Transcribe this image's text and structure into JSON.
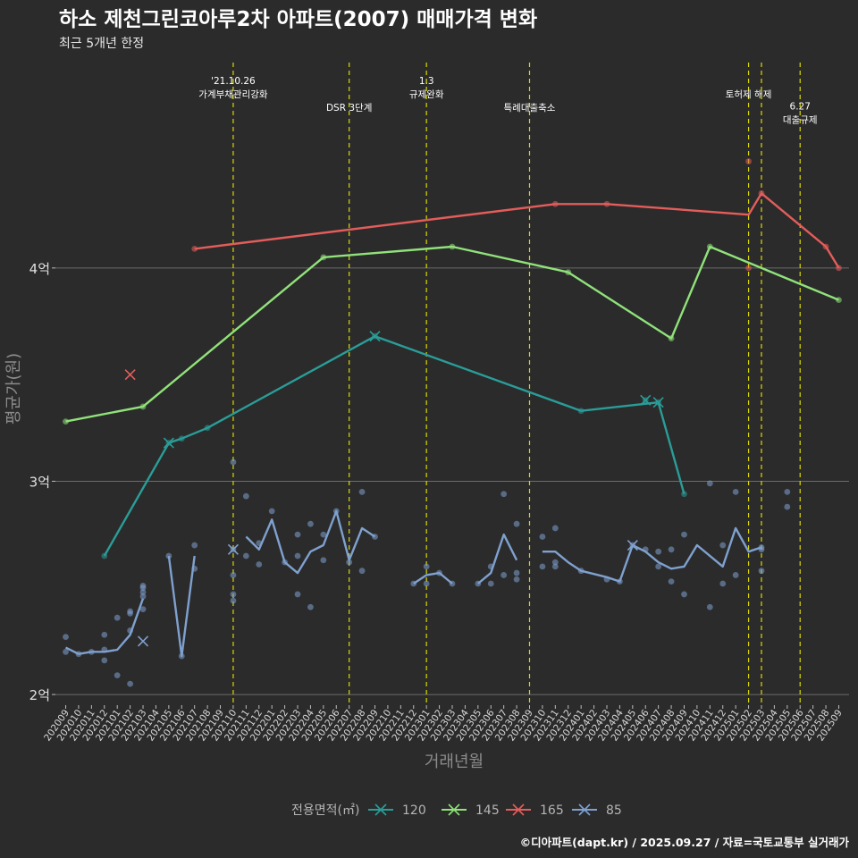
{
  "chart_data": {
    "type": "line",
    "title": "하소 제천그린코아루2차 아파트(2007) 매매가격 변화",
    "subtitle": "최근 5개년 한정",
    "xlabel": "거래년월",
    "ylabel": "평균가(원)",
    "caption": "©디아파트(dapt.kr) / 2025.09.27 / 자료=국토교통부 실거래가",
    "legend_title": "전용면적(㎡)",
    "legend_position": "bottom",
    "grid": true,
    "ylim": [
      1.95,
      4.98
    ],
    "yticks": [
      {
        "value": 2,
        "label": "2억"
      },
      {
        "value": 3,
        "label": "3억"
      },
      {
        "value": 4,
        "label": "4억"
      }
    ],
    "x_categories": [
      "202009",
      "202010",
      "202011",
      "202012",
      "202101",
      "202102",
      "202103",
      "202104",
      "202105",
      "202106",
      "202107",
      "202108",
      "202109",
      "202110",
      "202111",
      "202112",
      "202201",
      "202202",
      "202203",
      "202204",
      "202205",
      "202206",
      "202207",
      "202208",
      "202209",
      "202210",
      "202211",
      "202212",
      "202301",
      "202302",
      "202303",
      "202304",
      "202305",
      "202306",
      "202307",
      "202308",
      "202309",
      "202310",
      "202311",
      "202312",
      "202401",
      "202402",
      "202403",
      "202404",
      "202405",
      "202406",
      "202407",
      "202408",
      "202409",
      "202410",
      "202411",
      "202412",
      "202501",
      "202502",
      "202503",
      "202504",
      "202505",
      "202506",
      "202507",
      "202508",
      "202509"
    ],
    "annotations": [
      {
        "x": "202110",
        "lines": [
          "'21.10.26",
          "가계부채관리강화"
        ],
        "level": 0
      },
      {
        "x": "202207",
        "lines": [
          "DSR 3단계"
        ],
        "level": 2
      },
      {
        "x": "202301",
        "lines": [
          "1.3",
          "규제완화"
        ],
        "level": 0
      },
      {
        "x": "202309",
        "lines": [
          "특례대출축소"
        ],
        "level": 2
      },
      {
        "x": "202502",
        "lines": [
          "토허제 해제"
        ],
        "level": 1
      },
      {
        "x": "202503",
        "lines": [
          ""
        ],
        "level": 1
      },
      {
        "x": "202506",
        "lines": [
          "6.27",
          "대출규제"
        ],
        "level": 1.9
      }
    ],
    "series": [
      {
        "name": "120",
        "color": "#2a9d98",
        "line": [
          [
            "202012",
            2.65
          ],
          [
            "202105",
            3.18
          ],
          [
            "202106",
            3.2
          ],
          [
            "202108",
            3.25
          ],
          [
            "202209",
            3.68
          ],
          [
            "202401",
            3.33
          ],
          [
            "202407",
            3.37
          ],
          [
            "202409",
            2.94
          ]
        ],
        "points": [
          [
            "202012",
            2.65
          ],
          [
            "202105",
            3.18
          ],
          [
            "202106",
            3.2
          ],
          [
            "202108",
            3.25
          ],
          [
            "202209",
            3.68
          ],
          [
            "202401",
            3.33
          ],
          [
            "202406",
            3.38
          ],
          [
            "202407",
            3.37
          ],
          [
            "202409",
            2.94
          ]
        ],
        "crosses": [
          [
            "202105",
            3.18
          ],
          [
            "202209",
            3.68
          ],
          [
            "202406",
            3.38
          ],
          [
            "202407",
            3.37
          ]
        ]
      },
      {
        "name": "145",
        "color": "#90e27a",
        "line": [
          [
            "202009",
            3.28
          ],
          [
            "202103",
            3.35
          ],
          [
            "202205",
            4.05
          ],
          [
            "202303",
            4.1
          ],
          [
            "202312",
            3.98
          ],
          [
            "202408",
            3.67
          ],
          [
            "202411",
            4.1
          ],
          [
            "202509",
            3.85
          ]
        ],
        "points": [
          [
            "202009",
            3.28
          ],
          [
            "202103",
            3.35
          ],
          [
            "202205",
            4.05
          ],
          [
            "202303",
            4.1
          ],
          [
            "202312",
            3.98
          ],
          [
            "202408",
            3.67
          ],
          [
            "202411",
            4.1
          ],
          [
            "202509",
            3.85
          ]
        ],
        "crosses": []
      },
      {
        "name": "165",
        "color": "#e35d5b",
        "line": [
          [
            "202107",
            4.09
          ],
          [
            "202311",
            4.3
          ],
          [
            "202403",
            4.3
          ],
          [
            "202502",
            4.25
          ],
          [
            "202503",
            4.35
          ],
          [
            "202508",
            4.1
          ],
          [
            "202509",
            4.0
          ]
        ],
        "points": [
          [
            "202107",
            4.09
          ],
          [
            "202311",
            4.3
          ],
          [
            "202403",
            4.3
          ],
          [
            "202502",
            4.0
          ],
          [
            "202503",
            4.35
          ],
          [
            "202508",
            4.1
          ],
          [
            "202509",
            4.0
          ],
          [
            "202502",
            4.5
          ]
        ],
        "crosses": [
          [
            "202102",
            3.5
          ]
        ]
      },
      {
        "name": "85",
        "color": "#7fa1cf",
        "line": [
          [
            [
              "202009",
              2.22
            ],
            [
              "202010",
              2.19
            ],
            [
              "202011",
              2.2
            ],
            [
              "202012",
              2.2
            ],
            [
              "202101",
              2.21
            ],
            [
              "202102",
              2.28
            ],
            [
              "202103",
              2.45
            ]
          ],
          [
            [
              "202105",
              2.65
            ],
            [
              "202106",
              2.18
            ],
            [
              "202107",
              2.65
            ]
          ],
          [
            [
              "202111",
              2.74
            ],
            [
              "202112",
              2.68
            ],
            [
              "202201",
              2.82
            ],
            [
              "202202",
              2.62
            ],
            [
              "202203",
              2.57
            ],
            [
              "202204",
              2.67
            ],
            [
              "202205",
              2.7
            ],
            [
              "202206",
              2.86
            ],
            [
              "202207",
              2.63
            ],
            [
              "202208",
              2.78
            ],
            [
              "202209",
              2.74
            ]
          ],
          [
            [
              "202212",
              2.52
            ],
            [
              "202301",
              2.56
            ],
            [
              "202302",
              2.57
            ],
            [
              "202303",
              2.52
            ]
          ],
          [
            [
              "202305",
              2.52
            ],
            [
              "202306",
              2.57
            ],
            [
              "202307",
              2.75
            ],
            [
              "202308",
              2.63
            ]
          ],
          [
            [
              "202310",
              2.67
            ],
            [
              "202311",
              2.67
            ],
            [
              "202312",
              2.62
            ],
            [
              "202401",
              2.58
            ],
            [
              "202403",
              2.55
            ],
            [
              "202404",
              2.53
            ],
            [
              "202405",
              2.7
            ],
            [
              "202406",
              2.67
            ],
            [
              "202407",
              2.62
            ],
            [
              "202408",
              2.59
            ],
            [
              "202409",
              2.6
            ],
            [
              "202410",
              2.7
            ],
            [
              "202412",
              2.6
            ],
            [
              "202501",
              2.78
            ],
            [
              "202502",
              2.67
            ],
            [
              "202503",
              2.69
            ]
          ]
        ],
        "points": [
          [
            "202009",
            2.27
          ],
          [
            "202009",
            2.2
          ],
          [
            "202010",
            2.19
          ],
          [
            "202011",
            2.2
          ],
          [
            "202012",
            2.28
          ],
          [
            "202012",
            2.16
          ],
          [
            "202012",
            2.21
          ],
          [
            "202101",
            2.09
          ],
          [
            "202101",
            2.36
          ],
          [
            "202102",
            2.05
          ],
          [
            "202102",
            2.3
          ],
          [
            "202102",
            2.38
          ],
          [
            "202102",
            2.39
          ],
          [
            "202103",
            2.4
          ],
          [
            "202103",
            2.46
          ],
          [
            "202103",
            2.48
          ],
          [
            "202103",
            2.5
          ],
          [
            "202103",
            2.51
          ],
          [
            "202105",
            2.65
          ],
          [
            "202106",
            2.18
          ],
          [
            "202107",
            2.7
          ],
          [
            "202107",
            2.59
          ],
          [
            "202110",
            3.09
          ],
          [
            "202110",
            2.68
          ],
          [
            "202110",
            2.56
          ],
          [
            "202110",
            2.47
          ],
          [
            "202110",
            2.44
          ],
          [
            "202111",
            2.93
          ],
          [
            "202111",
            2.65
          ],
          [
            "202112",
            2.61
          ],
          [
            "202112",
            2.71
          ],
          [
            "202201",
            2.86
          ],
          [
            "202202",
            2.62
          ],
          [
            "202203",
            2.47
          ],
          [
            "202203",
            2.65
          ],
          [
            "202203",
            2.75
          ],
          [
            "202204",
            2.41
          ],
          [
            "202204",
            2.8
          ],
          [
            "202205",
            2.63
          ],
          [
            "202205",
            2.75
          ],
          [
            "202206",
            2.86
          ],
          [
            "202207",
            2.62
          ],
          [
            "202208",
            2.58
          ],
          [
            "202208",
            2.95
          ],
          [
            "202209",
            2.74
          ],
          [
            "202212",
            2.52
          ],
          [
            "202301",
            2.52
          ],
          [
            "202301",
            2.6
          ],
          [
            "202302",
            2.57
          ],
          [
            "202303",
            2.52
          ],
          [
            "202305",
            2.52
          ],
          [
            "202306",
            2.52
          ],
          [
            "202306",
            2.6
          ],
          [
            "202307",
            2.56
          ],
          [
            "202307",
            2.94
          ],
          [
            "202308",
            2.54
          ],
          [
            "202308",
            2.57
          ],
          [
            "202308",
            2.8
          ],
          [
            "202310",
            2.6
          ],
          [
            "202310",
            2.74
          ],
          [
            "202311",
            2.6
          ],
          [
            "202311",
            2.62
          ],
          [
            "202311",
            2.78
          ],
          [
            "202401",
            2.58
          ],
          [
            "202403",
            2.54
          ],
          [
            "202404",
            2.53
          ],
          [
            "202405",
            2.7
          ],
          [
            "202406",
            2.68
          ],
          [
            "202407",
            2.6
          ],
          [
            "202407",
            2.67
          ],
          [
            "202408",
            2.53
          ],
          [
            "202408",
            2.68
          ],
          [
            "202409",
            2.47
          ],
          [
            "202409",
            2.75
          ],
          [
            "202411",
            2.41
          ],
          [
            "202411",
            2.99
          ],
          [
            "202412",
            2.52
          ],
          [
            "202412",
            2.7
          ],
          [
            "202501",
            2.56
          ],
          [
            "202501",
            2.95
          ],
          [
            "202503",
            2.68
          ],
          [
            "202503",
            2.69
          ],
          [
            "202503",
            2.58
          ],
          [
            "202505",
            2.88
          ],
          [
            "202505",
            2.95
          ]
        ],
        "crosses": [
          [
            "202103",
            2.25
          ],
          [
            "202110",
            2.68
          ],
          [
            "202405",
            2.7
          ]
        ]
      }
    ]
  }
}
